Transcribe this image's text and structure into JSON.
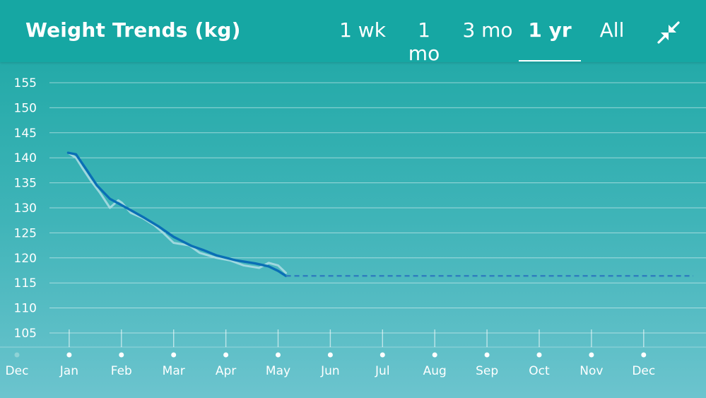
{
  "header": {
    "title": "Weight Trends (kg)",
    "ranges": [
      {
        "label": "1 wk",
        "active": false
      },
      {
        "label": "1 mo",
        "active": false
      },
      {
        "label": "3 mo",
        "active": false
      },
      {
        "label": "1 yr",
        "active": true
      },
      {
        "label": "All",
        "active": false
      }
    ],
    "collapse_icon": "collapse-arrows-icon"
  },
  "chart_data": {
    "type": "line",
    "title": "Weight Trends (kg)",
    "xlabel": "",
    "ylabel": "",
    "y_ticks": [
      105,
      110,
      115,
      120,
      125,
      130,
      135,
      140,
      145,
      150,
      155
    ],
    "x_months": [
      "Dec",
      "Jan",
      "Feb",
      "Mar",
      "Apr",
      "May",
      "Jun",
      "Jul",
      "Aug",
      "Sep",
      "Oct",
      "Nov",
      "Dec"
    ],
    "grid": true,
    "colors": {
      "trend": "#0a6fb5",
      "raw": "#a9dce2",
      "projection": "#2f7fbe",
      "grid": "#ffffff",
      "faded_label": "#8fd3d6"
    },
    "series": [
      {
        "role": "raw",
        "x": [
          0.98,
          1.13,
          1.25,
          1.41,
          1.59,
          1.78,
          1.94,
          2.01,
          2.18,
          2.4,
          2.63,
          2.8,
          3.0,
          3.3,
          3.5,
          3.82,
          4.08,
          4.34,
          4.64,
          4.82,
          5.0,
          5.15
        ],
        "y": [
          141.0,
          140.0,
          138.0,
          135.5,
          133.0,
          130.0,
          131.5,
          131.0,
          129.0,
          128.0,
          126.5,
          125.0,
          123.0,
          122.5,
          121.0,
          120.0,
          119.5,
          118.5,
          118.0,
          119.0,
          118.5,
          117.0
        ]
      },
      {
        "role": "trend",
        "x": [
          0.98,
          1.13,
          1.34,
          1.53,
          1.78,
          2.01,
          2.22,
          2.44,
          2.71,
          3.0,
          3.34,
          3.56,
          3.82,
          4.2,
          4.56,
          4.82,
          5.0,
          5.15
        ],
        "y": [
          141.0,
          140.7,
          137.5,
          134.5,
          131.8,
          130.5,
          129.3,
          128.0,
          126.3,
          124.2,
          122.4,
          121.6,
          120.5,
          119.5,
          118.9,
          118.3,
          117.4,
          116.4
        ]
      },
      {
        "role": "projection",
        "x": [
          5.15,
          12.95
        ],
        "y": [
          116.4,
          116.4
        ]
      }
    ]
  }
}
